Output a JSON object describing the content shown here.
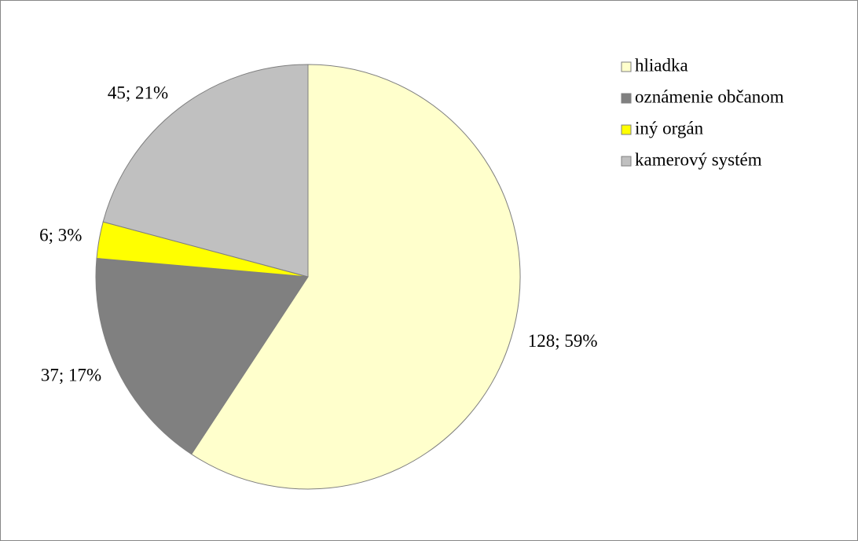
{
  "chart_data": {
    "type": "pie",
    "categories": [
      "hliadka",
      "oznámenie občanom",
      "iný orgán",
      "kamerový systém"
    ],
    "values": [
      128,
      37,
      6,
      45
    ],
    "value_labels": [
      "128; 59%",
      "37; 17%",
      "6; 3%",
      "45; 21%"
    ],
    "colors": [
      "#ffffcc",
      "#808080",
      "#ffff00",
      "#c0c0c0"
    ],
    "legend": "right"
  }
}
